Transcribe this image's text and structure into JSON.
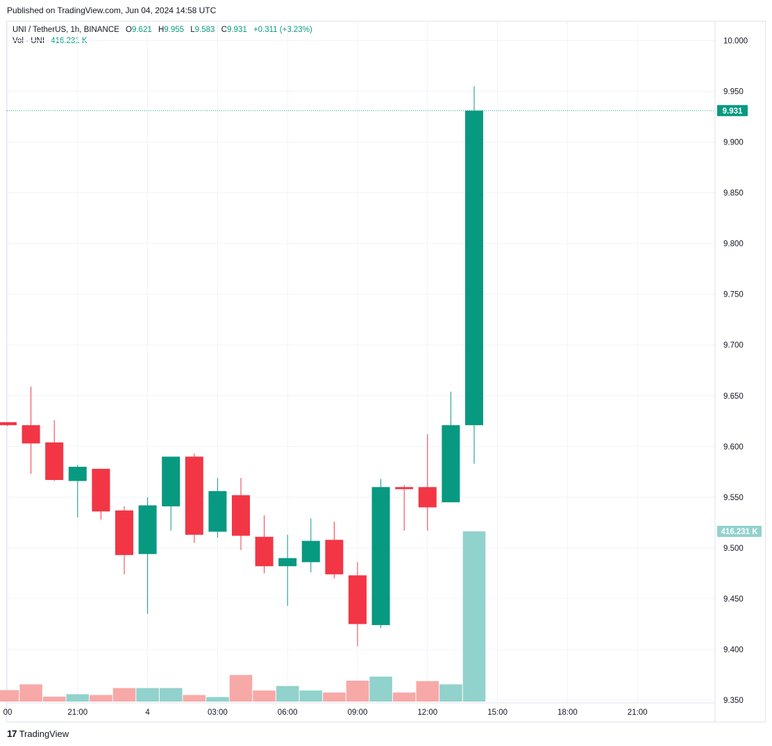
{
  "header": {
    "published": "Published on TradingView.com, Jun 04, 2024 14:58 UTC"
  },
  "legend": {
    "symbol": "UNI / TetherUS, 1h, BINANCE",
    "o_label": "O",
    "o_value": "9.621",
    "h_label": "H",
    "h_value": "9.955",
    "l_label": "L",
    "l_value": "9.583",
    "c_label": "C",
    "c_value": "9.931",
    "change": "+0.311 (+3.23%)",
    "vol_label": "Vol · UNI",
    "vol_value": "416.231 K"
  },
  "footer": {
    "brand": "TradingView"
  },
  "colors": {
    "up": "#089981",
    "down": "#f23645",
    "up_vol": "#92d2cc",
    "down_vol": "#f7a9a7",
    "grid": "#f0f3fa",
    "axis_text": "#131722"
  },
  "chart_data": {
    "type": "candlestick",
    "ylim": [
      9.35,
      10.0
    ],
    "y_ticks": [
      "10.000",
      "9.950",
      "9.900",
      "9.850",
      "9.800",
      "9.750",
      "9.700",
      "9.650",
      "9.600",
      "9.550",
      "9.500",
      "9.450",
      "9.400",
      "9.350"
    ],
    "x_ticks": [
      {
        "label": "00",
        "index": 0
      },
      {
        "label": "21:00",
        "index": 3
      },
      {
        "label": "4",
        "index": 6
      },
      {
        "label": "03:00",
        "index": 9
      },
      {
        "label": "06:00",
        "index": 12
      },
      {
        "label": "09:00",
        "index": 15
      },
      {
        "label": "12:00",
        "index": 18
      },
      {
        "label": "15:00",
        "index": 21
      },
      {
        "label": "18:00",
        "index": 24
      },
      {
        "label": "21:00",
        "index": 27
      }
    ],
    "last_price": {
      "value": 9.931,
      "label": "9.931"
    },
    "last_volume": {
      "value": 416.231,
      "label": "416.231 K"
    },
    "volume_max": 416.231,
    "candles": [
      {
        "o": 9.624,
        "h": 9.624,
        "l": 9.62,
        "c": 9.621,
        "v": 28
      },
      {
        "o": 9.621,
        "h": 9.659,
        "l": 9.573,
        "c": 9.603,
        "v": 42
      },
      {
        "o": 9.604,
        "h": 9.626,
        "l": 9.566,
        "c": 9.567,
        "v": 12
      },
      {
        "o": 9.566,
        "h": 9.582,
        "l": 9.53,
        "c": 9.58,
        "v": 18
      },
      {
        "o": 9.578,
        "h": 9.578,
        "l": 9.528,
        "c": 9.536,
        "v": 16
      },
      {
        "o": 9.537,
        "h": 9.541,
        "l": 9.474,
        "c": 9.493,
        "v": 33
      },
      {
        "o": 9.494,
        "h": 9.55,
        "l": 9.435,
        "c": 9.542,
        "v": 33
      },
      {
        "o": 9.541,
        "h": 9.59,
        "l": 9.517,
        "c": 9.59,
        "v": 33
      },
      {
        "o": 9.59,
        "h": 9.593,
        "l": 9.505,
        "c": 9.513,
        "v": 16
      },
      {
        "o": 9.516,
        "h": 9.569,
        "l": 9.51,
        "c": 9.556,
        "v": 11
      },
      {
        "o": 9.552,
        "h": 9.569,
        "l": 9.498,
        "c": 9.512,
        "v": 65
      },
      {
        "o": 9.511,
        "h": 9.532,
        "l": 9.475,
        "c": 9.482,
        "v": 27
      },
      {
        "o": 9.482,
        "h": 9.513,
        "l": 9.443,
        "c": 9.49,
        "v": 38
      },
      {
        "o": 9.486,
        "h": 9.529,
        "l": 9.476,
        "c": 9.507,
        "v": 27
      },
      {
        "o": 9.508,
        "h": 9.526,
        "l": 9.47,
        "c": 9.474,
        "v": 22
      },
      {
        "o": 9.473,
        "h": 9.486,
        "l": 9.403,
        "c": 9.425,
        "v": 51
      },
      {
        "o": 9.424,
        "h": 9.568,
        "l": 9.421,
        "c": 9.56,
        "v": 61
      },
      {
        "o": 9.56,
        "h": 9.562,
        "l": 9.517,
        "c": 9.558,
        "v": 22
      },
      {
        "o": 9.56,
        "h": 9.612,
        "l": 9.517,
        "c": 9.54,
        "v": 50
      },
      {
        "o": 9.545,
        "h": 9.654,
        "l": 9.545,
        "c": 9.621,
        "v": 42
      },
      {
        "o": 9.621,
        "h": 9.955,
        "l": 9.583,
        "c": 9.931,
        "v": 416.231
      }
    ]
  }
}
